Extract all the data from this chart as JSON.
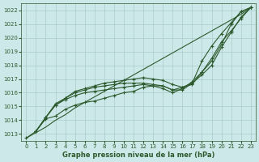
{
  "xlabel": "Graphe pression niveau de la mer (hPa)",
  "ylim": [
    1012.5,
    1022.5
  ],
  "xlim": [
    -0.5,
    23.5
  ],
  "yticks": [
    1013,
    1014,
    1015,
    1016,
    1017,
    1018,
    1019,
    1020,
    1021,
    1022
  ],
  "xticks": [
    0,
    1,
    2,
    3,
    4,
    5,
    6,
    7,
    8,
    9,
    10,
    11,
    12,
    13,
    14,
    15,
    16,
    17,
    18,
    19,
    20,
    21,
    22,
    23
  ],
  "bg_color": "#cce8e8",
  "grid_color": "#aacccc",
  "line_color": "#2d5a2d",
  "lines": [
    {
      "x": [
        0,
        1,
        2,
        3,
        4,
        5,
        6,
        7,
        8,
        9,
        10,
        11,
        12,
        13,
        14,
        15,
        16,
        17,
        18,
        19,
        20,
        21,
        22,
        23
      ],
      "y": [
        1012.7,
        1013.1,
        1013.5,
        1014.0,
        1014.4,
        1014.9,
        1015.3,
        1015.7,
        1016.1,
        1016.5,
        1016.9,
        1017.3,
        1017.7,
        1018.1,
        1018.5,
        1018.9,
        1019.3,
        1019.7,
        1020.1,
        1020.5,
        1020.9,
        1021.3,
        1021.7,
        1022.2
      ],
      "marker": false
    },
    {
      "x": [
        1,
        2,
        3,
        4,
        5,
        6,
        7,
        8,
        9,
        10,
        11,
        12,
        13,
        14,
        15,
        16,
        17,
        18,
        19,
        20,
        21,
        22,
        23
      ],
      "y": [
        1013.2,
        1014.2,
        1015.1,
        1015.5,
        1015.8,
        1016.0,
        1016.1,
        1016.2,
        1016.3,
        1016.4,
        1016.5,
        1016.6,
        1016.5,
        1016.3,
        1016.0,
        1016.3,
        1016.8,
        1017.5,
        1018.3,
        1019.5,
        1021.0,
        1021.9,
        1022.2
      ],
      "marker": true
    },
    {
      "x": [
        1,
        2,
        3,
        4,
        5,
        6,
        7,
        8,
        9,
        10,
        11,
        12,
        13,
        14,
        15,
        16,
        17,
        18,
        19,
        20,
        21,
        22,
        23
      ],
      "y": [
        1013.2,
        1014.2,
        1015.1,
        1015.6,
        1016.1,
        1016.3,
        1016.5,
        1016.7,
        1016.8,
        1016.9,
        1017.0,
        1017.1,
        1017.0,
        1016.9,
        1016.6,
        1016.4,
        1016.6,
        1017.5,
        1018.5,
        1019.7,
        1020.5,
        1021.4,
        1022.2
      ],
      "marker": true
    },
    {
      "x": [
        1,
        2,
        3,
        4,
        5,
        6,
        7,
        8,
        9,
        10,
        11,
        12,
        13,
        14,
        15,
        16,
        17,
        18,
        19,
        20,
        21,
        22,
        23
      ],
      "y": [
        1013.2,
        1014.2,
        1015.2,
        1015.6,
        1016.0,
        1016.2,
        1016.4,
        1016.5,
        1016.6,
        1016.7,
        1016.7,
        1016.7,
        1016.6,
        1016.5,
        1016.2,
        1016.2,
        1016.7,
        1017.3,
        1018.0,
        1019.3,
        1020.4,
        1021.5,
        1022.2
      ],
      "marker": true
    },
    {
      "x": [
        0,
        1,
        2,
        3,
        4,
        5,
        6,
        7,
        8,
        9,
        10,
        11,
        12,
        13,
        14,
        15,
        16,
        17,
        18,
        19,
        20,
        21,
        22,
        23
      ],
      "y": [
        1012.7,
        1013.2,
        1014.1,
        1014.3,
        1014.8,
        1015.1,
        1015.3,
        1015.4,
        1015.6,
        1015.8,
        1016.0,
        1016.1,
        1016.4,
        1016.5,
        1016.5,
        1016.2,
        1016.4,
        1016.7,
        1018.3,
        1019.4,
        1020.3,
        1021.1,
        1021.9,
        1022.2
      ],
      "marker": true
    }
  ]
}
